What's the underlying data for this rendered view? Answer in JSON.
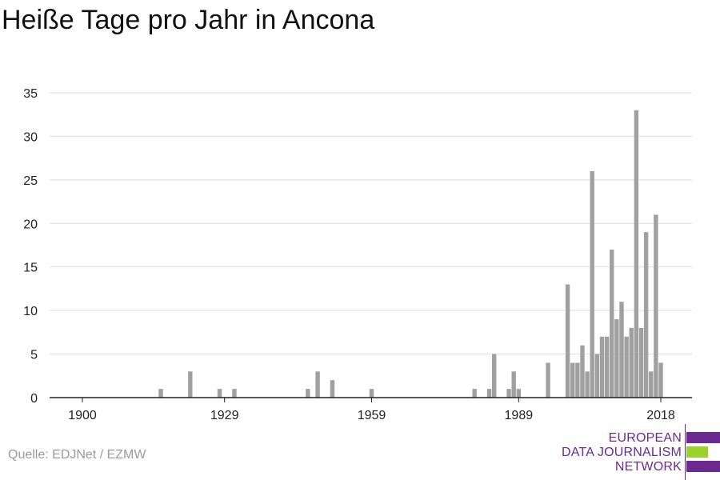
{
  "title": "Heiße Tage pro Jahr in Ancona",
  "source": "Quelle: EDJNet / EZMW",
  "logo": {
    "line1": "EUROPEAN",
    "line2": "DATA JOURNALISM",
    "line3": "NETWORK",
    "colors": {
      "purple": "#6b2a8f",
      "green": "#9bd12c"
    }
  },
  "colors": {
    "bar": "#a0a0a0",
    "grid": "#dddddd",
    "axis": "#222222",
    "text": "#222222"
  },
  "chart_data": {
    "type": "bar",
    "title": "Heiße Tage pro Jahr in Ancona",
    "xlabel": "",
    "ylabel": "",
    "xlim": [
      1900,
      2018
    ],
    "ylim": [
      0,
      35
    ],
    "grid": true,
    "x_ticks": [
      1900,
      1929,
      1959,
      1989,
      2018
    ],
    "y_ticks": [
      0,
      5,
      10,
      15,
      20,
      25,
      30,
      35
    ],
    "years": [
      1916,
      1922,
      1928,
      1931,
      1946,
      1948,
      1951,
      1959,
      1980,
      1983,
      1984,
      1987,
      1988,
      1989,
      1995,
      1999,
      2000,
      2001,
      2002,
      2003,
      2004,
      2005,
      2006,
      2007,
      2008,
      2009,
      2010,
      2011,
      2012,
      2013,
      2014,
      2015,
      2016,
      2017,
      2018
    ],
    "values": [
      1,
      3,
      1,
      1,
      1,
      3,
      2,
      1,
      1,
      1,
      5,
      1,
      3,
      1,
      4,
      13,
      4,
      4,
      6,
      3,
      26,
      5,
      7,
      7,
      17,
      9,
      11,
      7,
      8,
      33,
      8,
      19,
      3,
      21,
      4
    ]
  }
}
